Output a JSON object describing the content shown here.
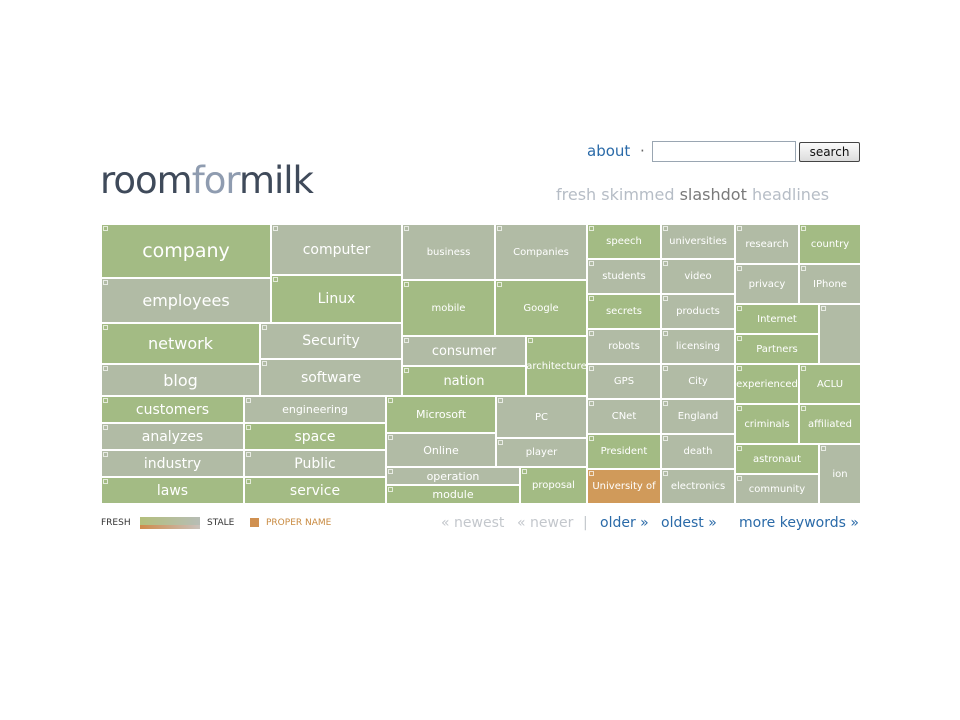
{
  "header": {
    "about": "about",
    "separator": "·",
    "search_placeholder": "",
    "search_button": "search"
  },
  "logo": {
    "part1": "room",
    "part2": "for",
    "part3": "milk"
  },
  "subtitle": {
    "pre": "fresh skimmed",
    "strong": "slashdot",
    "post": "headlines"
  },
  "colors": {
    "green": "#a3bb84",
    "gray": "#b1bba5",
    "mid": "#a9bb94",
    "proper": "#d09a5a",
    "link": "#2a6aa8"
  },
  "tiles": [
    {
      "label": "company",
      "color": "green"
    },
    {
      "label": "computer",
      "color": "gray"
    },
    {
      "label": "business",
      "color": "gray"
    },
    {
      "label": "Companies",
      "color": "gray"
    },
    {
      "label": "speech",
      "color": "green"
    },
    {
      "label": "universities",
      "color": "gray"
    },
    {
      "label": "research",
      "color": "gray"
    },
    {
      "label": "country",
      "color": "green"
    },
    {
      "label": "employees",
      "color": "gray"
    },
    {
      "label": "Linux",
      "color": "green"
    },
    {
      "label": "mobile",
      "color": "green"
    },
    {
      "label": "Google",
      "color": "green"
    },
    {
      "label": "students",
      "color": "gray"
    },
    {
      "label": "video",
      "color": "gray"
    },
    {
      "label": "privacy",
      "color": "gray"
    },
    {
      "label": "IPhone",
      "color": "gray"
    },
    {
      "label": "network",
      "color": "green"
    },
    {
      "label": "Security",
      "color": "gray"
    },
    {
      "label": "consumer",
      "color": "gray"
    },
    {
      "label": "architecture",
      "color": "green"
    },
    {
      "label": "secrets",
      "color": "green"
    },
    {
      "label": "products",
      "color": "gray"
    },
    {
      "label": "Internet",
      "color": "green"
    },
    {
      "label": "",
      "color": "gray"
    },
    {
      "label": "blog",
      "color": "gray"
    },
    {
      "label": "software",
      "color": "gray"
    },
    {
      "label": "nation",
      "color": "green"
    },
    {
      "label": "robots",
      "color": "gray"
    },
    {
      "label": "licensing",
      "color": "gray"
    },
    {
      "label": "Partners",
      "color": "green"
    },
    {
      "label": "customers",
      "color": "green"
    },
    {
      "label": "engineering",
      "color": "gray"
    },
    {
      "label": "Microsoft",
      "color": "green"
    },
    {
      "label": "PC",
      "color": "gray"
    },
    {
      "label": "GPS",
      "color": "gray"
    },
    {
      "label": "City",
      "color": "gray"
    },
    {
      "label": "experienced",
      "color": "green"
    },
    {
      "label": "ACLU",
      "color": "green"
    },
    {
      "label": "analyzes",
      "color": "gray"
    },
    {
      "label": "space",
      "color": "green"
    },
    {
      "label": "Online",
      "color": "gray"
    },
    {
      "label": "player",
      "color": "gray"
    },
    {
      "label": "CNet",
      "color": "gray"
    },
    {
      "label": "England",
      "color": "gray"
    },
    {
      "label": "criminals",
      "color": "green"
    },
    {
      "label": "affiliated",
      "color": "green"
    },
    {
      "label": "industry",
      "color": "gray"
    },
    {
      "label": "Public",
      "color": "gray"
    },
    {
      "label": "operation",
      "color": "gray"
    },
    {
      "label": "proposal",
      "color": "green"
    },
    {
      "label": "President",
      "color": "green"
    },
    {
      "label": "death",
      "color": "gray"
    },
    {
      "label": "astronaut",
      "color": "green"
    },
    {
      "label": "ion",
      "color": "gray"
    },
    {
      "label": "laws",
      "color": "green"
    },
    {
      "label": "service",
      "color": "green"
    },
    {
      "label": "module",
      "color": "green"
    },
    {
      "label": "University of",
      "color": "proper"
    },
    {
      "label": "electronics",
      "color": "gray"
    },
    {
      "label": "community",
      "color": "gray"
    }
  ],
  "legend": {
    "fresh": "FRESH",
    "stale": "STALE",
    "proper": "PROPER NAME"
  },
  "nav": {
    "newest": "« newest",
    "newer": "« newer",
    "separator": "|",
    "older": "older »",
    "oldest": "oldest »",
    "more": "more keywords »"
  }
}
